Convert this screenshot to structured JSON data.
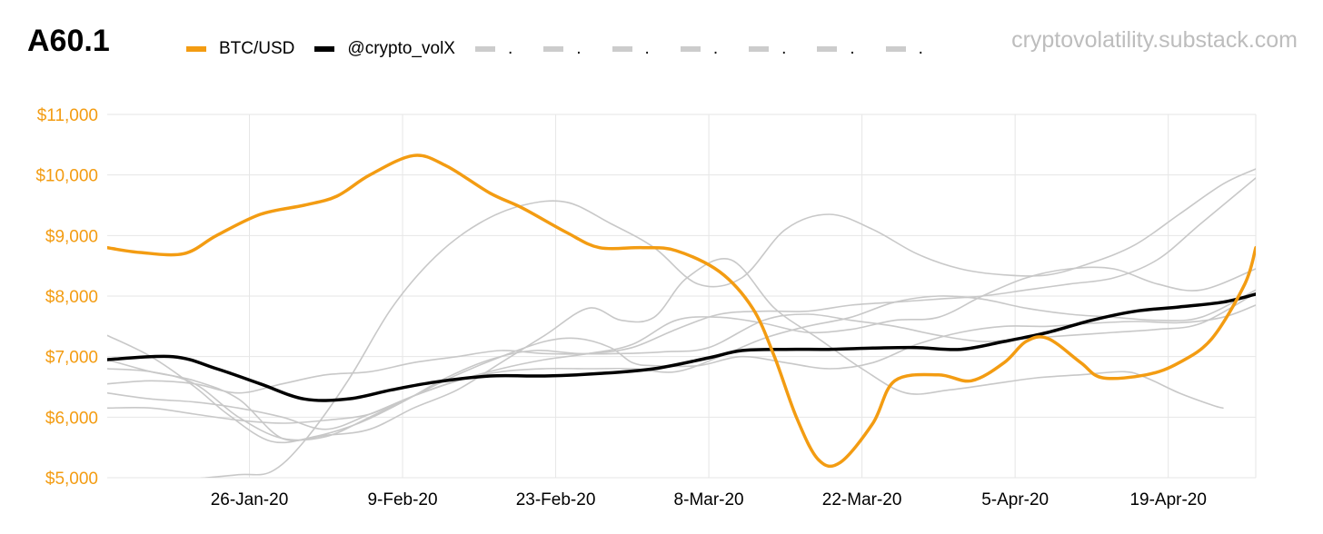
{
  "chart_data": {
    "type": "line",
    "title": "A60.1",
    "source": "cryptovolatility.substack.com",
    "xlabel": "",
    "ylabel": "",
    "x_start": "2020-01-13",
    "x_end": "2020-04-28",
    "x_ticks": [
      {
        "day": 13,
        "label": "26-Jan-20"
      },
      {
        "day": 27,
        "label": "9-Feb-20"
      },
      {
        "day": 41,
        "label": "23-Feb-20"
      },
      {
        "day": 55,
        "label": "8-Mar-20"
      },
      {
        "day": 69,
        "label": "22-Mar-20"
      },
      {
        "day": 83,
        "label": "5-Apr-20"
      },
      {
        "day": 97,
        "label": "19-Apr-20"
      }
    ],
    "ylim": [
      5000,
      11000
    ],
    "y_ticks": [
      {
        "value": 5000,
        "label": "$5,000"
      },
      {
        "value": 6000,
        "label": "$6,000"
      },
      {
        "value": 7000,
        "label": "$7,000"
      },
      {
        "value": 8000,
        "label": "$8,000"
      },
      {
        "value": 9000,
        "label": "$9,000"
      },
      {
        "value": 10000,
        "label": "$10,000"
      },
      {
        "value": 11000,
        "label": "$11,000"
      }
    ],
    "grid": true,
    "colors": {
      "btc": "#f39c12",
      "volx": "#000000",
      "gray": "#c8c8c8",
      "axis_text": "#f39c12",
      "x_text": "#000000",
      "gridline": "#e6e6e6"
    },
    "legend": {
      "btc": "BTC/USD",
      "volx": "@crypto_volX",
      "gray_entries": [
        ".",
        ".",
        ".",
        ".",
        ".",
        ".",
        "."
      ]
    },
    "series": [
      {
        "name": "BTC/USD",
        "color": "#f39c12",
        "width": 3.5,
        "points": [
          [
            0,
            8800
          ],
          [
            3,
            8720
          ],
          [
            7,
            8700
          ],
          [
            10,
            9000
          ],
          [
            14,
            9350
          ],
          [
            18,
            9500
          ],
          [
            21,
            9650
          ],
          [
            24,
            10000
          ],
          [
            28,
            10320
          ],
          [
            31,
            10150
          ],
          [
            35,
            9700
          ],
          [
            38,
            9450
          ],
          [
            42,
            9050
          ],
          [
            45,
            8800
          ],
          [
            49,
            8800
          ],
          [
            52,
            8750
          ],
          [
            56,
            8400
          ],
          [
            59,
            7800
          ],
          [
            61,
            7000
          ],
          [
            63,
            6000
          ],
          [
            65,
            5300
          ],
          [
            67,
            5250
          ],
          [
            70,
            5900
          ],
          [
            72,
            6600
          ],
          [
            76,
            6700
          ],
          [
            79,
            6600
          ],
          [
            82,
            6900
          ],
          [
            84,
            7250
          ],
          [
            86,
            7300
          ],
          [
            89,
            6900
          ],
          [
            91,
            6650
          ],
          [
            95,
            6700
          ],
          [
            98,
            6900
          ],
          [
            101,
            7300
          ],
          [
            104,
            8200
          ],
          [
            105,
            8800
          ]
        ]
      },
      {
        "name": "@crypto_volX",
        "color": "#000000",
        "width": 3.5,
        "points": [
          [
            0,
            6950
          ],
          [
            6,
            7000
          ],
          [
            10,
            6800
          ],
          [
            14,
            6550
          ],
          [
            18,
            6300
          ],
          [
            22,
            6300
          ],
          [
            26,
            6450
          ],
          [
            30,
            6580
          ],
          [
            35,
            6680
          ],
          [
            40,
            6680
          ],
          [
            45,
            6720
          ],
          [
            50,
            6800
          ],
          [
            55,
            6980
          ],
          [
            58,
            7100
          ],
          [
            62,
            7120
          ],
          [
            66,
            7120
          ],
          [
            70,
            7140
          ],
          [
            74,
            7150
          ],
          [
            78,
            7120
          ],
          [
            82,
            7250
          ],
          [
            86,
            7400
          ],
          [
            90,
            7600
          ],
          [
            94,
            7750
          ],
          [
            98,
            7820
          ],
          [
            102,
            7900
          ],
          [
            105,
            8030
          ]
        ]
      },
      {
        "name": "gray-1",
        "color": "#c8c8c8",
        "width": 1.6,
        "points": [
          [
            0,
            7350
          ],
          [
            4,
            7000
          ],
          [
            8,
            6500
          ],
          [
            11,
            6050
          ],
          [
            15,
            5600
          ],
          [
            19,
            5680
          ],
          [
            23,
            5900
          ],
          [
            27,
            6250
          ],
          [
            31,
            6650
          ],
          [
            35,
            6950
          ],
          [
            39,
            7100
          ],
          [
            43,
            7050
          ],
          [
            47,
            7050
          ],
          [
            51,
            7080
          ],
          [
            55,
            7150
          ],
          [
            60,
            7600
          ],
          [
            64,
            7700
          ],
          [
            68,
            7600
          ],
          [
            72,
            7500
          ],
          [
            76,
            7350
          ],
          [
            80,
            7250
          ],
          [
            84,
            7300
          ],
          [
            88,
            7350
          ],
          [
            92,
            7400
          ],
          [
            96,
            7450
          ],
          [
            100,
            7550
          ],
          [
            105,
            8050
          ]
        ]
      },
      {
        "name": "gray-2",
        "color": "#c8c8c8",
        "width": 1.6,
        "points": [
          [
            0,
            6800
          ],
          [
            4,
            6750
          ],
          [
            8,
            6550
          ],
          [
            12,
            6000
          ],
          [
            16,
            5650
          ],
          [
            20,
            5680
          ],
          [
            24,
            6000
          ],
          [
            28,
            6350
          ],
          [
            32,
            6700
          ],
          [
            36,
            7000
          ],
          [
            40,
            7250
          ],
          [
            43,
            7300
          ],
          [
            46,
            7150
          ],
          [
            48,
            6900
          ],
          [
            50,
            6850
          ],
          [
            54,
            6850
          ],
          [
            58,
            7000
          ],
          [
            62,
            6900
          ],
          [
            66,
            6800
          ],
          [
            70,
            6900
          ],
          [
            74,
            7200
          ],
          [
            78,
            7400
          ],
          [
            82,
            7500
          ],
          [
            86,
            7500
          ],
          [
            90,
            7550
          ],
          [
            94,
            7580
          ],
          [
            98,
            7560
          ],
          [
            102,
            7650
          ],
          [
            105,
            7850
          ]
        ]
      },
      {
        "name": "gray-3",
        "color": "#c8c8c8",
        "width": 1.6,
        "points": [
          [
            0,
            6550
          ],
          [
            4,
            6600
          ],
          [
            8,
            6550
          ],
          [
            12,
            6400
          ],
          [
            16,
            6550
          ],
          [
            20,
            6700
          ],
          [
            24,
            6750
          ],
          [
            28,
            6900
          ],
          [
            32,
            7000
          ],
          [
            36,
            7100
          ],
          [
            40,
            7050
          ],
          [
            44,
            7050
          ],
          [
            48,
            7150
          ],
          [
            52,
            7450
          ],
          [
            56,
            7700
          ],
          [
            60,
            7750
          ],
          [
            64,
            7750
          ],
          [
            68,
            7850
          ],
          [
            72,
            7900
          ],
          [
            76,
            7950
          ],
          [
            80,
            8000
          ],
          [
            84,
            8100
          ],
          [
            88,
            8200
          ],
          [
            92,
            8300
          ],
          [
            96,
            8600
          ],
          [
            100,
            9200
          ],
          [
            105,
            9950
          ]
        ]
      },
      {
        "name": "gray-4",
        "color": "#c8c8c8",
        "width": 1.6,
        "points": [
          [
            0,
            6150
          ],
          [
            4,
            6150
          ],
          [
            8,
            6050
          ],
          [
            12,
            5950
          ],
          [
            16,
            5900
          ],
          [
            20,
            5950
          ],
          [
            24,
            6050
          ],
          [
            28,
            6350
          ],
          [
            32,
            6600
          ],
          [
            36,
            6750
          ],
          [
            40,
            6800
          ],
          [
            44,
            6800
          ],
          [
            48,
            6800
          ],
          [
            52,
            6750
          ],
          [
            56,
            7000
          ],
          [
            60,
            7300
          ],
          [
            64,
            7500
          ],
          [
            68,
            7650
          ],
          [
            72,
            7900
          ],
          [
            76,
            8000
          ],
          [
            80,
            7950
          ],
          [
            84,
            7800
          ],
          [
            88,
            7700
          ],
          [
            92,
            7650
          ],
          [
            96,
            7600
          ],
          [
            100,
            7650
          ],
          [
            105,
            8100
          ]
        ]
      },
      {
        "name": "gray-5",
        "color": "#c8c8c8",
        "width": 1.6,
        "points": [
          [
            0,
            6400
          ],
          [
            4,
            6300
          ],
          [
            8,
            6250
          ],
          [
            12,
            6150
          ],
          [
            16,
            6000
          ],
          [
            20,
            5800
          ],
          [
            24,
            6050
          ],
          [
            28,
            6350
          ],
          [
            32,
            6600
          ],
          [
            36,
            6800
          ],
          [
            40,
            6950
          ],
          [
            44,
            7050
          ],
          [
            48,
            7200
          ],
          [
            52,
            7600
          ],
          [
            56,
            7650
          ],
          [
            60,
            7550
          ],
          [
            64,
            7400
          ],
          [
            68,
            7450
          ],
          [
            72,
            7600
          ],
          [
            76,
            7650
          ],
          [
            80,
            8000
          ],
          [
            84,
            8300
          ],
          [
            88,
            8450
          ],
          [
            92,
            8450
          ],
          [
            96,
            8200
          ],
          [
            100,
            8100
          ],
          [
            105,
            8450
          ]
        ]
      },
      {
        "name": "gray-6",
        "color": "#c8c8c8",
        "width": 1.6,
        "points": [
          [
            0,
            6950
          ],
          [
            4,
            6750
          ],
          [
            8,
            6600
          ],
          [
            12,
            6300
          ],
          [
            16,
            5650
          ],
          [
            20,
            5700
          ],
          [
            24,
            5800
          ],
          [
            28,
            6150
          ],
          [
            32,
            6450
          ],
          [
            36,
            6900
          ],
          [
            40,
            7350
          ],
          [
            44,
            7800
          ],
          [
            47,
            7600
          ],
          [
            50,
            7650
          ],
          [
            53,
            8300
          ],
          [
            57,
            8600
          ],
          [
            61,
            7800
          ],
          [
            65,
            7300
          ],
          [
            69,
            6800
          ],
          [
            73,
            6400
          ],
          [
            77,
            6450
          ],
          [
            81,
            6550
          ],
          [
            85,
            6650
          ],
          [
            89,
            6700
          ],
          [
            93,
            6750
          ],
          [
            95,
            6650
          ],
          [
            98,
            6400
          ],
          [
            101,
            6200
          ],
          [
            102,
            6150
          ]
        ]
      },
      {
        "name": "gray-7",
        "color": "#c8c8c8",
        "width": 1.6,
        "points": [
          [
            8,
            4980
          ],
          [
            12,
            5050
          ],
          [
            15,
            5100
          ],
          [
            18,
            5600
          ],
          [
            22,
            6600
          ],
          [
            26,
            7800
          ],
          [
            30,
            8650
          ],
          [
            34,
            9200
          ],
          [
            38,
            9500
          ],
          [
            42,
            9550
          ],
          [
            46,
            9200
          ],
          [
            50,
            8800
          ],
          [
            54,
            8200
          ],
          [
            58,
            8300
          ],
          [
            62,
            9100
          ],
          [
            66,
            9350
          ],
          [
            70,
            9100
          ],
          [
            74,
            8700
          ],
          [
            78,
            8450
          ],
          [
            82,
            8350
          ],
          [
            86,
            8350
          ],
          [
            90,
            8550
          ],
          [
            94,
            8850
          ],
          [
            98,
            9350
          ],
          [
            102,
            9850
          ],
          [
            105,
            10100
          ]
        ]
      }
    ]
  }
}
